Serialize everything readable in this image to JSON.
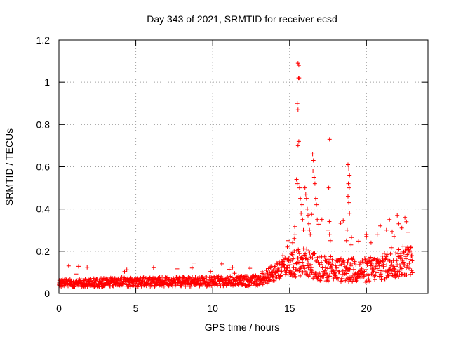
{
  "chart_data": {
    "type": "scatter",
    "title": "Day 343 of 2021, SRMTID for receiver ecsd",
    "xlabel": "GPS time / hours",
    "ylabel": "SRMTID / TECUs",
    "xlim": [
      0,
      24
    ],
    "ylim": [
      0,
      1.2
    ],
    "xticks": [
      0,
      5,
      10,
      15,
      20
    ],
    "xtick_labels": [
      "0",
      "5",
      "10",
      "15",
      "20"
    ],
    "yticks": [
      0,
      0.2,
      0.4,
      0.6,
      0.8,
      1.0,
      1.2
    ],
    "ytick_labels": [
      "0",
      "0.2",
      "0.4",
      "0.6",
      "0.8",
      "1",
      "1.2"
    ],
    "grid": true,
    "marker": "+",
    "series": [
      {
        "name": "SRMTID",
        "color": "#ff0000",
        "trend": [
          {
            "x": 0.0,
            "y": 0.05
          },
          {
            "x": 13.0,
            "y": 0.06
          },
          {
            "x": 14.0,
            "y": 0.1
          },
          {
            "x": 15.0,
            "y": 0.14
          },
          {
            "x": 16.0,
            "y": 0.15
          },
          {
            "x": 17.0,
            "y": 0.12
          },
          {
            "x": 19.0,
            "y": 0.11
          },
          {
            "x": 20.0,
            "y": 0.11
          },
          {
            "x": 22.0,
            "y": 0.14
          },
          {
            "x": 23.0,
            "y": 0.16
          }
        ],
        "scatter_width": [
          {
            "x": 0.0,
            "w": 0.02
          },
          {
            "x": 13.0,
            "w": 0.025
          },
          {
            "x": 14.5,
            "w": 0.05
          },
          {
            "x": 15.5,
            "w": 0.07
          },
          {
            "x": 17.0,
            "w": 0.06
          },
          {
            "x": 20.0,
            "w": 0.06
          },
          {
            "x": 23.0,
            "w": 0.07
          }
        ],
        "highlights": [
          {
            "x": 15.55,
            "y": 1.09
          },
          {
            "x": 15.6,
            "y": 1.08
          },
          {
            "x": 15.58,
            "y": 1.02
          },
          {
            "x": 15.62,
            "y": 1.02
          },
          {
            "x": 15.5,
            "y": 0.9
          },
          {
            "x": 15.55,
            "y": 0.87
          },
          {
            "x": 15.6,
            "y": 0.72
          },
          {
            "x": 15.55,
            "y": 0.7
          },
          {
            "x": 15.45,
            "y": 0.54
          },
          {
            "x": 15.5,
            "y": 0.52
          },
          {
            "x": 15.65,
            "y": 0.5
          },
          {
            "x": 15.7,
            "y": 0.45
          },
          {
            "x": 15.8,
            "y": 0.42
          },
          {
            "x": 15.75,
            "y": 0.38
          },
          {
            "x": 15.85,
            "y": 0.35
          },
          {
            "x": 15.9,
            "y": 0.3
          },
          {
            "x": 16.0,
            "y": 0.5
          },
          {
            "x": 16.05,
            "y": 0.47
          },
          {
            "x": 16.1,
            "y": 0.45
          },
          {
            "x": 16.15,
            "y": 0.4
          },
          {
            "x": 16.2,
            "y": 0.37
          },
          {
            "x": 16.25,
            "y": 0.33
          },
          {
            "x": 16.3,
            "y": 0.3
          },
          {
            "x": 16.35,
            "y": 0.28
          },
          {
            "x": 16.5,
            "y": 0.66
          },
          {
            "x": 16.55,
            "y": 0.63
          },
          {
            "x": 16.52,
            "y": 0.58
          },
          {
            "x": 16.6,
            "y": 0.55
          },
          {
            "x": 16.65,
            "y": 0.52
          },
          {
            "x": 16.7,
            "y": 0.45
          },
          {
            "x": 16.75,
            "y": 0.42
          },
          {
            "x": 16.8,
            "y": 0.35
          },
          {
            "x": 17.6,
            "y": 0.73
          },
          {
            "x": 17.55,
            "y": 0.5
          },
          {
            "x": 17.5,
            "y": 0.3
          },
          {
            "x": 17.6,
            "y": 0.28
          },
          {
            "x": 17.65,
            "y": 0.25
          },
          {
            "x": 18.8,
            "y": 0.61
          },
          {
            "x": 18.85,
            "y": 0.59
          },
          {
            "x": 18.9,
            "y": 0.56
          },
          {
            "x": 18.82,
            "y": 0.52
          },
          {
            "x": 18.88,
            "y": 0.5
          },
          {
            "x": 18.8,
            "y": 0.46
          },
          {
            "x": 18.85,
            "y": 0.43
          },
          {
            "x": 18.9,
            "y": 0.38
          },
          {
            "x": 18.75,
            "y": 0.3
          },
          {
            "x": 18.7,
            "y": 0.25
          },
          {
            "x": 19.0,
            "y": 0.23
          },
          {
            "x": 15.3,
            "y": 0.26
          },
          {
            "x": 15.2,
            "y": 0.24
          },
          {
            "x": 15.35,
            "y": 0.28
          },
          {
            "x": 14.9,
            "y": 0.25
          },
          {
            "x": 14.85,
            "y": 0.22
          },
          {
            "x": 21.5,
            "y": 0.35
          },
          {
            "x": 21.3,
            "y": 0.3
          },
          {
            "x": 22.0,
            "y": 0.37
          },
          {
            "x": 22.1,
            "y": 0.33
          },
          {
            "x": 22.3,
            "y": 0.31
          },
          {
            "x": 22.5,
            "y": 0.36
          },
          {
            "x": 22.6,
            "y": 0.34
          },
          {
            "x": 22.7,
            "y": 0.29
          },
          {
            "x": 20.9,
            "y": 0.32
          },
          {
            "x": 20.7,
            "y": 0.28
          },
          {
            "x": 21.8,
            "y": 0.27
          },
          {
            "x": 20.0,
            "y": 0.27
          },
          {
            "x": 20.3,
            "y": 0.24
          }
        ]
      }
    ]
  }
}
